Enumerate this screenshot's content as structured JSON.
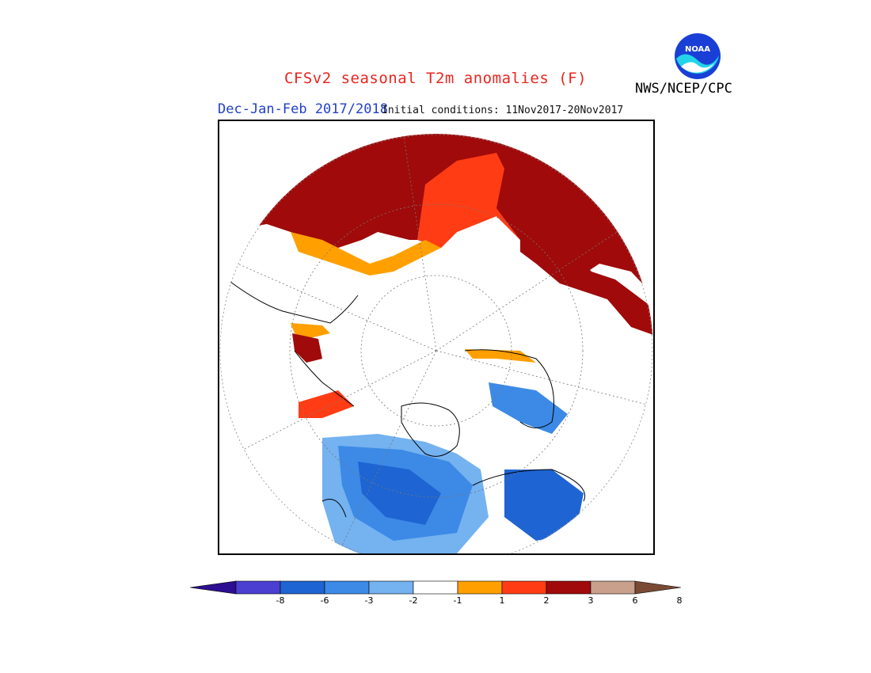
{
  "title": "CFSv2 seasonal T2m anomalies (F)",
  "period": "Dec-Jan-Feb 2017/2018",
  "initial_conditions": "Initial conditions: 11Nov2017-20Nov2017",
  "agency": "NWS/NCEP/CPC",
  "logo_text": "NOAA",
  "colors": {
    "title": "#e8251f",
    "period": "#2340c8",
    "bins": [
      "#2c0e90",
      "#4a3fd0",
      "#1e64d2",
      "#3c8ae6",
      "#74b2f0",
      "#ffffff",
      "#ffa000",
      "#ff3c14",
      "#a00a0a",
      "#c8a08c",
      "#7a4a34"
    ]
  },
  "colorbar": {
    "tick_labels": [
      "-8",
      "-6",
      "-3",
      "-2",
      "-1",
      "1",
      "2",
      "3",
      "6",
      "8"
    ]
  },
  "map": {
    "projection": "north-polar-stereographic"
  }
}
